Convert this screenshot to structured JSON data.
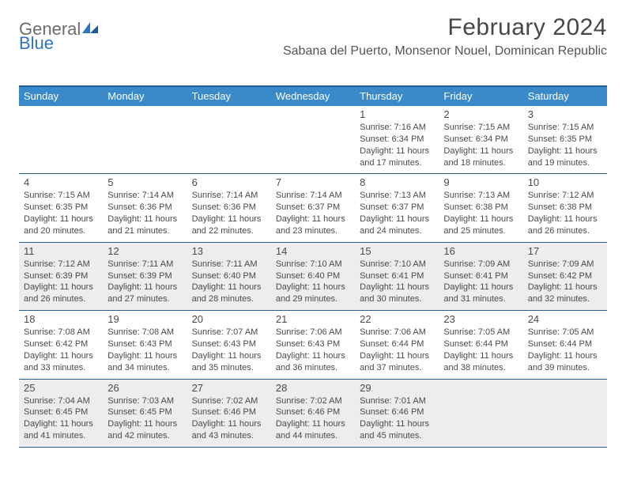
{
  "brand": {
    "part1": "General",
    "part2": "Blue"
  },
  "title": "February 2024",
  "location": "Sabana del Puerto, Monsenor Nouel, Dominican Republic",
  "colors": {
    "header_bg": "#3a8ac9",
    "header_border": "#245e8f",
    "week_border": "#2a5e8c",
    "shade_bg": "#ededed",
    "text": "#4a4a4a",
    "brand_gray": "#6c6c6c",
    "brand_blue": "#2f75c1"
  },
  "dow": [
    "Sunday",
    "Monday",
    "Tuesday",
    "Wednesday",
    "Thursday",
    "Friday",
    "Saturday"
  ],
  "weeks": [
    {
      "shaded": false,
      "days": [
        null,
        null,
        null,
        null,
        {
          "n": "1",
          "sr": "Sunrise: 7:16 AM",
          "ss": "Sunset: 6:34 PM",
          "d1": "Daylight: 11 hours",
          "d2": "and 17 minutes."
        },
        {
          "n": "2",
          "sr": "Sunrise: 7:15 AM",
          "ss": "Sunset: 6:34 PM",
          "d1": "Daylight: 11 hours",
          "d2": "and 18 minutes."
        },
        {
          "n": "3",
          "sr": "Sunrise: 7:15 AM",
          "ss": "Sunset: 6:35 PM",
          "d1": "Daylight: 11 hours",
          "d2": "and 19 minutes."
        }
      ]
    },
    {
      "shaded": false,
      "days": [
        {
          "n": "4",
          "sr": "Sunrise: 7:15 AM",
          "ss": "Sunset: 6:35 PM",
          "d1": "Daylight: 11 hours",
          "d2": "and 20 minutes."
        },
        {
          "n": "5",
          "sr": "Sunrise: 7:14 AM",
          "ss": "Sunset: 6:36 PM",
          "d1": "Daylight: 11 hours",
          "d2": "and 21 minutes."
        },
        {
          "n": "6",
          "sr": "Sunrise: 7:14 AM",
          "ss": "Sunset: 6:36 PM",
          "d1": "Daylight: 11 hours",
          "d2": "and 22 minutes."
        },
        {
          "n": "7",
          "sr": "Sunrise: 7:14 AM",
          "ss": "Sunset: 6:37 PM",
          "d1": "Daylight: 11 hours",
          "d2": "and 23 minutes."
        },
        {
          "n": "8",
          "sr": "Sunrise: 7:13 AM",
          "ss": "Sunset: 6:37 PM",
          "d1": "Daylight: 11 hours",
          "d2": "and 24 minutes."
        },
        {
          "n": "9",
          "sr": "Sunrise: 7:13 AM",
          "ss": "Sunset: 6:38 PM",
          "d1": "Daylight: 11 hours",
          "d2": "and 25 minutes."
        },
        {
          "n": "10",
          "sr": "Sunrise: 7:12 AM",
          "ss": "Sunset: 6:38 PM",
          "d1": "Daylight: 11 hours",
          "d2": "and 26 minutes."
        }
      ]
    },
    {
      "shaded": true,
      "days": [
        {
          "n": "11",
          "sr": "Sunrise: 7:12 AM",
          "ss": "Sunset: 6:39 PM",
          "d1": "Daylight: 11 hours",
          "d2": "and 26 minutes."
        },
        {
          "n": "12",
          "sr": "Sunrise: 7:11 AM",
          "ss": "Sunset: 6:39 PM",
          "d1": "Daylight: 11 hours",
          "d2": "and 27 minutes."
        },
        {
          "n": "13",
          "sr": "Sunrise: 7:11 AM",
          "ss": "Sunset: 6:40 PM",
          "d1": "Daylight: 11 hours",
          "d2": "and 28 minutes."
        },
        {
          "n": "14",
          "sr": "Sunrise: 7:10 AM",
          "ss": "Sunset: 6:40 PM",
          "d1": "Daylight: 11 hours",
          "d2": "and 29 minutes."
        },
        {
          "n": "15",
          "sr": "Sunrise: 7:10 AM",
          "ss": "Sunset: 6:41 PM",
          "d1": "Daylight: 11 hours",
          "d2": "and 30 minutes."
        },
        {
          "n": "16",
          "sr": "Sunrise: 7:09 AM",
          "ss": "Sunset: 6:41 PM",
          "d1": "Daylight: 11 hours",
          "d2": "and 31 minutes."
        },
        {
          "n": "17",
          "sr": "Sunrise: 7:09 AM",
          "ss": "Sunset: 6:42 PM",
          "d1": "Daylight: 11 hours",
          "d2": "and 32 minutes."
        }
      ]
    },
    {
      "shaded": false,
      "days": [
        {
          "n": "18",
          "sr": "Sunrise: 7:08 AM",
          "ss": "Sunset: 6:42 PM",
          "d1": "Daylight: 11 hours",
          "d2": "and 33 minutes."
        },
        {
          "n": "19",
          "sr": "Sunrise: 7:08 AM",
          "ss": "Sunset: 6:43 PM",
          "d1": "Daylight: 11 hours",
          "d2": "and 34 minutes."
        },
        {
          "n": "20",
          "sr": "Sunrise: 7:07 AM",
          "ss": "Sunset: 6:43 PM",
          "d1": "Daylight: 11 hours",
          "d2": "and 35 minutes."
        },
        {
          "n": "21",
          "sr": "Sunrise: 7:06 AM",
          "ss": "Sunset: 6:43 PM",
          "d1": "Daylight: 11 hours",
          "d2": "and 36 minutes."
        },
        {
          "n": "22",
          "sr": "Sunrise: 7:06 AM",
          "ss": "Sunset: 6:44 PM",
          "d1": "Daylight: 11 hours",
          "d2": "and 37 minutes."
        },
        {
          "n": "23",
          "sr": "Sunrise: 7:05 AM",
          "ss": "Sunset: 6:44 PM",
          "d1": "Daylight: 11 hours",
          "d2": "and 38 minutes."
        },
        {
          "n": "24",
          "sr": "Sunrise: 7:05 AM",
          "ss": "Sunset: 6:44 PM",
          "d1": "Daylight: 11 hours",
          "d2": "and 39 minutes."
        }
      ]
    },
    {
      "shaded": true,
      "days": [
        {
          "n": "25",
          "sr": "Sunrise: 7:04 AM",
          "ss": "Sunset: 6:45 PM",
          "d1": "Daylight: 11 hours",
          "d2": "and 41 minutes."
        },
        {
          "n": "26",
          "sr": "Sunrise: 7:03 AM",
          "ss": "Sunset: 6:45 PM",
          "d1": "Daylight: 11 hours",
          "d2": "and 42 minutes."
        },
        {
          "n": "27",
          "sr": "Sunrise: 7:02 AM",
          "ss": "Sunset: 6:46 PM",
          "d1": "Daylight: 11 hours",
          "d2": "and 43 minutes."
        },
        {
          "n": "28",
          "sr": "Sunrise: 7:02 AM",
          "ss": "Sunset: 6:46 PM",
          "d1": "Daylight: 11 hours",
          "d2": "and 44 minutes."
        },
        {
          "n": "29",
          "sr": "Sunrise: 7:01 AM",
          "ss": "Sunset: 6:46 PM",
          "d1": "Daylight: 11 hours",
          "d2": "and 45 minutes."
        },
        null,
        null
      ]
    }
  ]
}
